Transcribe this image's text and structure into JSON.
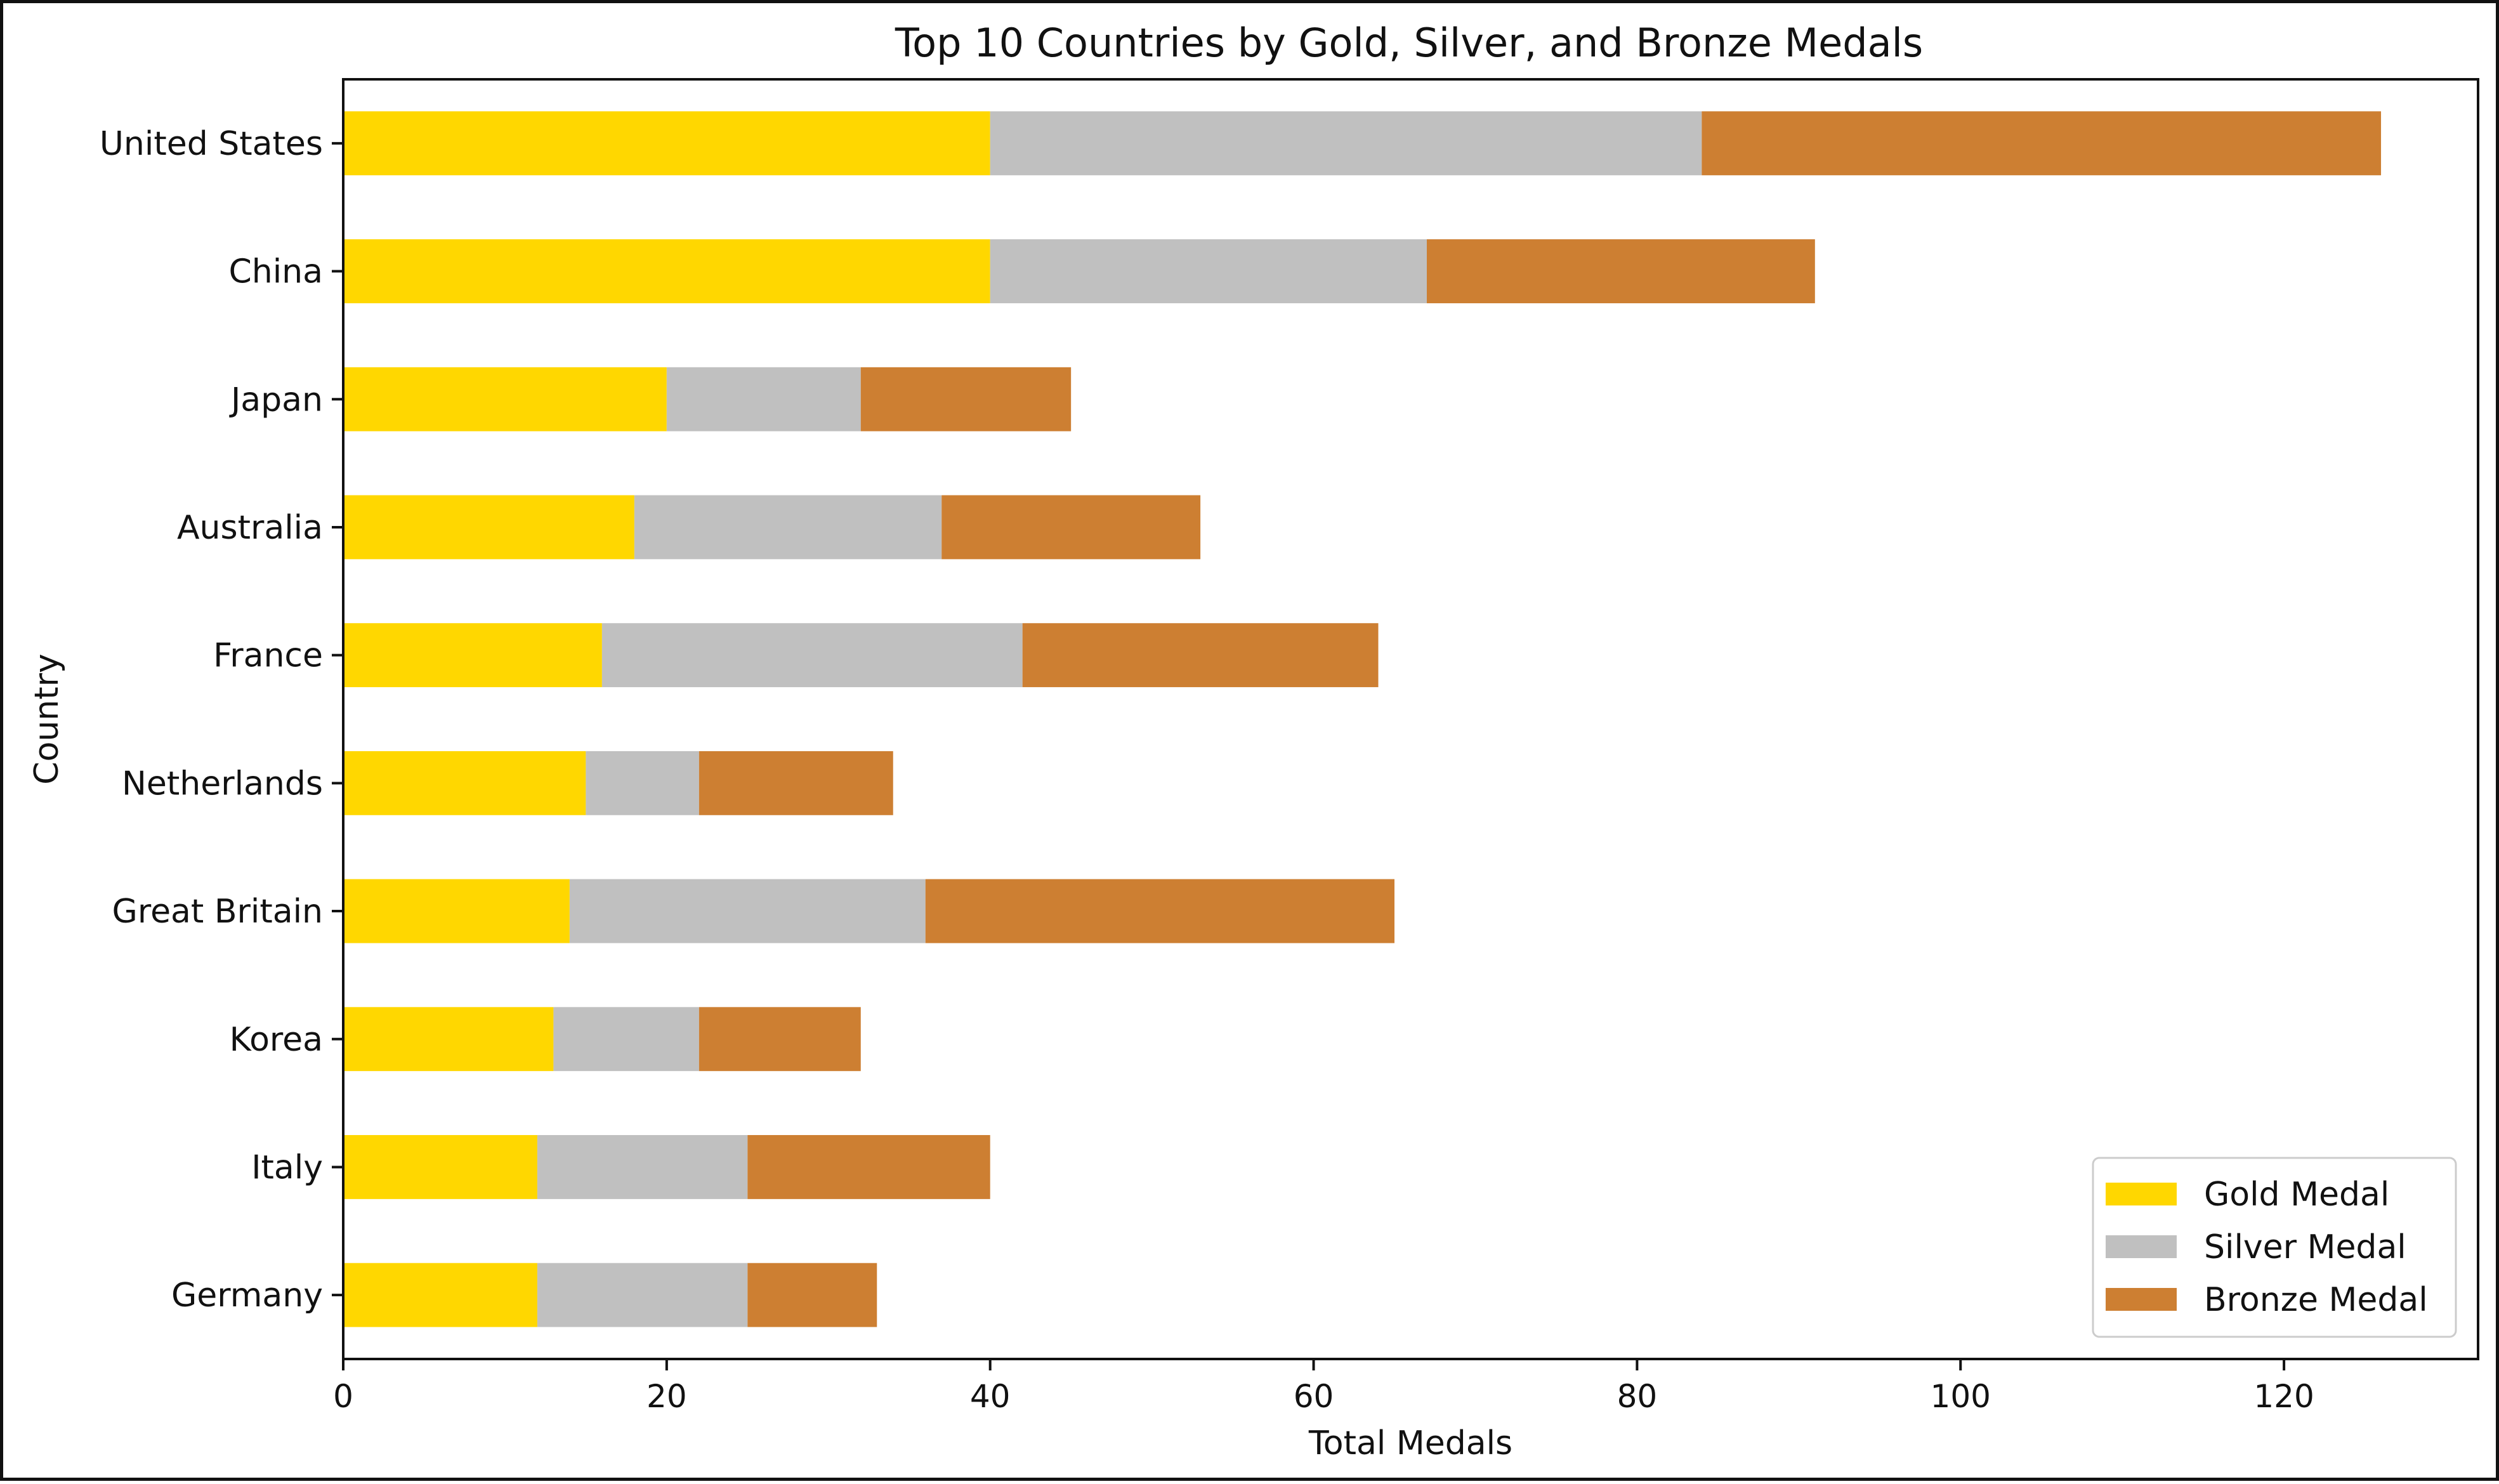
{
  "chart_data": {
    "type": "bar",
    "orientation": "horizontal",
    "stacked": true,
    "title": "Top 10 Countries by Gold, Silver, and Bronze Medals",
    "xlabel": "Total Medals",
    "ylabel": "Country",
    "xlim": [
      0,
      132
    ],
    "xticks": [
      0,
      20,
      40,
      60,
      80,
      100,
      120
    ],
    "grid": false,
    "legend_position": "bottom-right",
    "categories": [
      "United States",
      "China",
      "Japan",
      "Australia",
      "France",
      "Netherlands",
      "Great Britain",
      "Korea",
      "Italy",
      "Germany"
    ],
    "series": [
      {
        "name": "Gold Medal",
        "color": "#FFD700",
        "values": [
          40,
          40,
          20,
          18,
          16,
          15,
          14,
          13,
          12,
          12
        ]
      },
      {
        "name": "Silver Medal",
        "color": "#C0C0C0",
        "values": [
          44,
          27,
          12,
          19,
          26,
          7,
          22,
          9,
          13,
          13
        ]
      },
      {
        "name": "Bronze Medal",
        "color": "#CD7F32",
        "values": [
          42,
          24,
          13,
          16,
          22,
          12,
          29,
          10,
          15,
          8
        ]
      }
    ]
  }
}
